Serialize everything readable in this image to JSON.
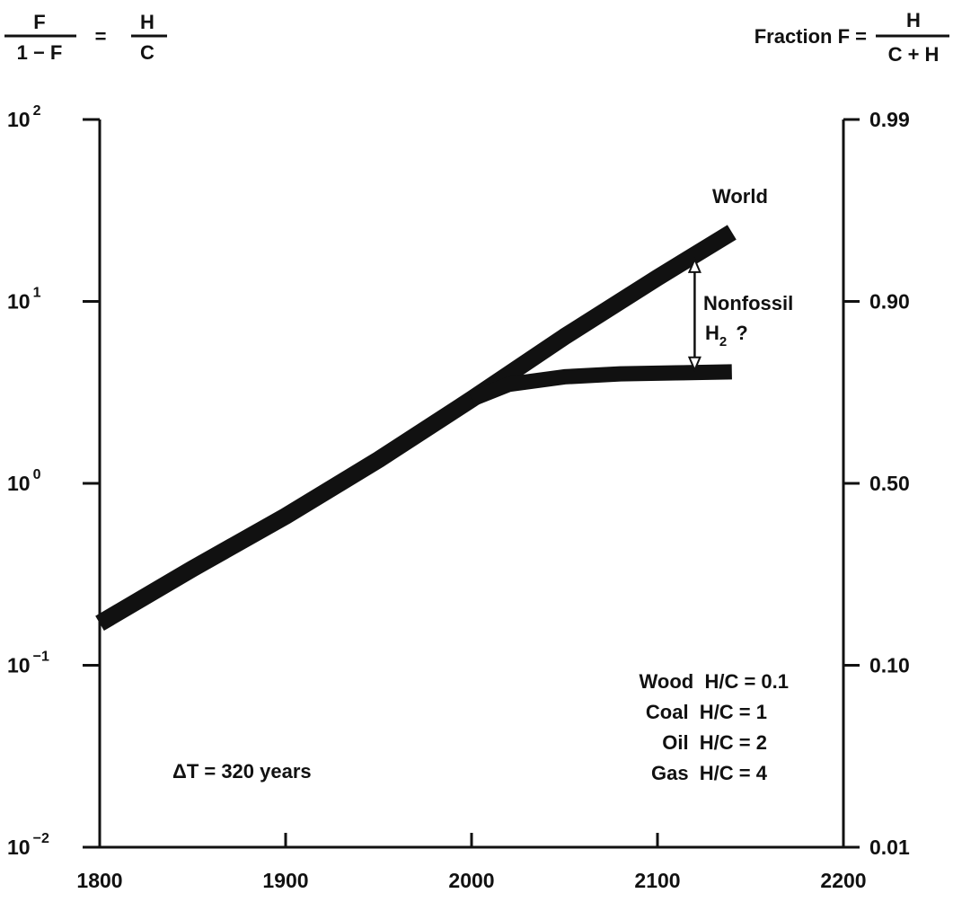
{
  "header": {
    "left_formula": {
      "numerator": "F",
      "denominator": "1 − F",
      "equals": "=",
      "rhs_numerator": "H",
      "rhs_denominator": "C"
    },
    "right_formula": {
      "label": "Fraction F =",
      "numerator": "H",
      "denominator": "C + H"
    }
  },
  "chart_data": {
    "type": "line",
    "title": "",
    "xlabel": "",
    "ylabel": "F/(1 − F) = H/C",
    "y2label": "Fraction F = H/(C + H)",
    "xlim": [
      1800,
      2200
    ],
    "ylim": [
      0.01,
      100
    ],
    "yscale": "log",
    "grid": false,
    "x_ticks": [
      "1800",
      "1900",
      "2000",
      "2100",
      "2200"
    ],
    "y_ticks_left": [
      {
        "base": "10",
        "exp": "2"
      },
      {
        "base": "10",
        "exp": "1"
      },
      {
        "base": "10",
        "exp": "0"
      },
      {
        "base": "10",
        "exp": "−1"
      },
      {
        "base": "10",
        "exp": "−2"
      }
    ],
    "y_ticks_left_values": [
      100,
      10,
      1,
      0.1,
      0.01
    ],
    "y_ticks_right": [
      "0.99",
      "0.90",
      "0.50",
      "0.10",
      "0.01"
    ],
    "y_ticks_right_values": [
      100,
      10,
      1,
      0.1,
      0.01
    ],
    "series": [
      {
        "name": "World",
        "x": [
          1800,
          1850,
          1900,
          1950,
          2000,
          2050,
          2100,
          2140
        ],
        "y": [
          0.17,
          0.34,
          0.66,
          1.35,
          2.9,
          6.4,
          13.5,
          24
        ]
      },
      {
        "name": "",
        "x": [
          2000,
          2020,
          2050,
          2080,
          2110,
          2140
        ],
        "y": [
          2.9,
          3.5,
          3.85,
          4.0,
          4.05,
          4.1
        ]
      }
    ],
    "annotations": {
      "world": "World",
      "nonfossil_line1": "Nonfossil",
      "nonfossil_h": "H",
      "nonfossil_sub": "2",
      "nonfossil_q": "?",
      "delta_t": "ΔT = 320 years",
      "legend_lines": [
        "Wood  H/C = 0.1",
        "Coal  H/C = 1",
        "Oil  H/C = 2",
        "Gas  H/C = 4"
      ]
    },
    "arrow": {
      "x": 2120,
      "y_top": 17,
      "y_bottom": 4.2
    }
  }
}
